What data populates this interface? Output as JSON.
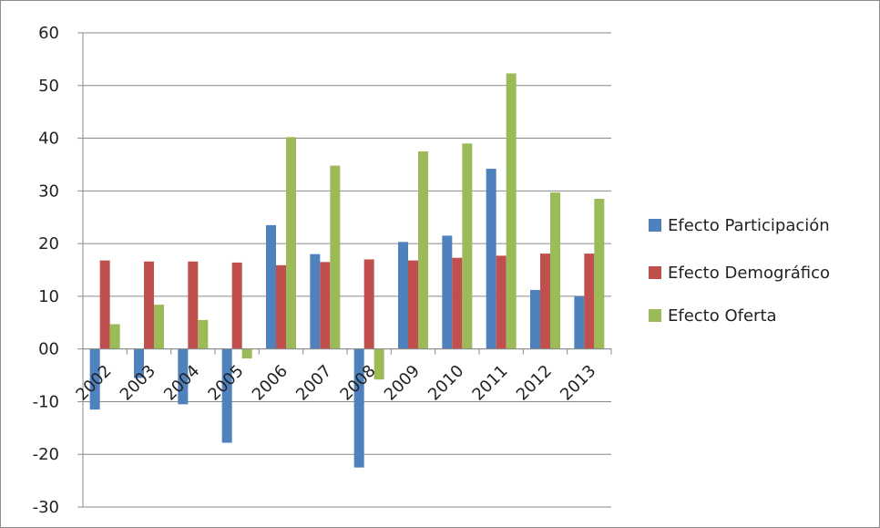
{
  "chart_data": {
    "type": "bar",
    "title": "",
    "xlabel": "",
    "ylabel": "",
    "categories": [
      "2002",
      "2003",
      "2004",
      "2005",
      "2006",
      "2007",
      "2008",
      "2009",
      "2010",
      "2011",
      "2012",
      "2013"
    ],
    "ylim": [
      -30,
      60
    ],
    "yticks": [
      -30,
      -20,
      -10,
      0,
      10,
      20,
      30,
      40,
      50,
      60
    ],
    "ytick_labels": [
      "-30",
      "-20",
      "-10",
      "00",
      "10",
      "20",
      "30",
      "40",
      "50",
      "60"
    ],
    "grid": true,
    "legend_position": "right",
    "series": [
      {
        "name": "Efecto Participación",
        "color": "#4f81bd",
        "values": [
          -11.5,
          -5.5,
          -10.5,
          -17.8,
          23.5,
          18.0,
          -22.5,
          20.3,
          21.5,
          34.2,
          11.2,
          10.0
        ]
      },
      {
        "name": "Efecto Demográfico",
        "color": "#c0504d",
        "values": [
          16.8,
          16.6,
          16.6,
          16.4,
          15.9,
          16.5,
          17.0,
          16.8,
          17.3,
          17.7,
          18.1,
          18.1
        ]
      },
      {
        "name": "Efecto Oferta",
        "color": "#9bbb59",
        "values": [
          4.7,
          8.4,
          5.5,
          -1.8,
          40.2,
          34.8,
          -5.8,
          37.5,
          39.0,
          52.3,
          29.7,
          28.5
        ]
      }
    ]
  }
}
